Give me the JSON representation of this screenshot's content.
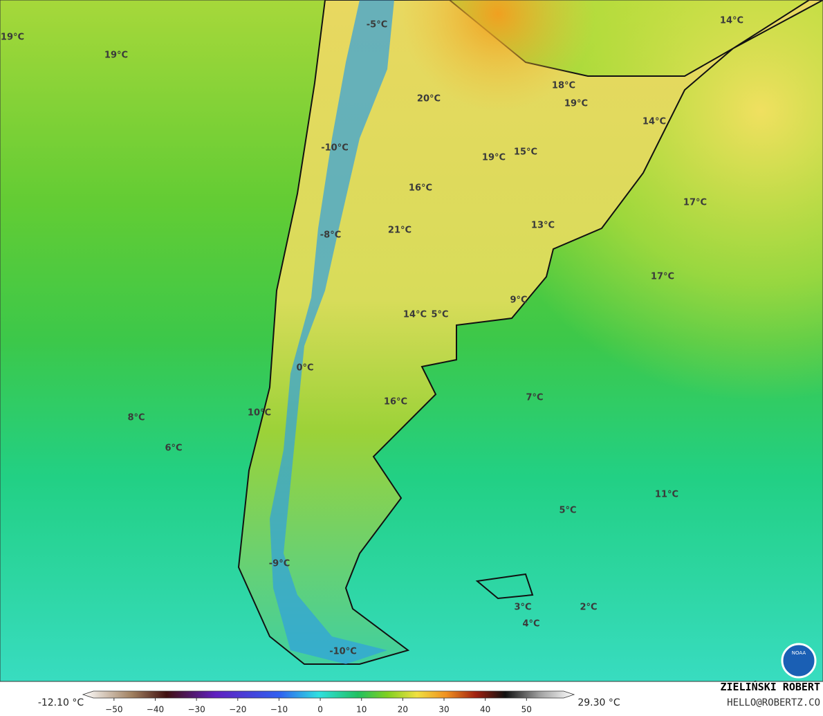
{
  "map": {
    "labels": [
      "19°C",
      "19°C",
      "-5°C",
      "14°C",
      "20°C",
      "18°C",
      "19°C",
      "14°C",
      "-10°C",
      "15°C",
      "19°C",
      "16°C",
      "17°C",
      "21°C",
      "13°C",
      "-8°C",
      "17°C",
      "9°C",
      "14°C",
      "5°C",
      "0°C",
      "7°C",
      "16°C",
      "8°C",
      "10°C",
      "6°C",
      "11°C",
      "5°C",
      "-9°C",
      "3°C",
      "2°C",
      "4°C",
      "-10°C"
    ],
    "logo": "NOAA"
  },
  "colorbar": {
    "min_label": "-12.10 °C",
    "max_label": "29.30 °C",
    "lim": [
      -55,
      59
    ],
    "ticks": [
      {
        "value": -50,
        "label": "−50"
      },
      {
        "value": -40,
        "label": "−40"
      },
      {
        "value": -30,
        "label": "−30"
      },
      {
        "value": -20,
        "label": "−20"
      },
      {
        "value": -10,
        "label": "−10"
      },
      0,
      10,
      20,
      30,
      40,
      50
    ]
  },
  "credits": {
    "name": "ZIELIŃSKI ROBERT",
    "email": "HELLO@ROBERTZ.CO"
  }
}
